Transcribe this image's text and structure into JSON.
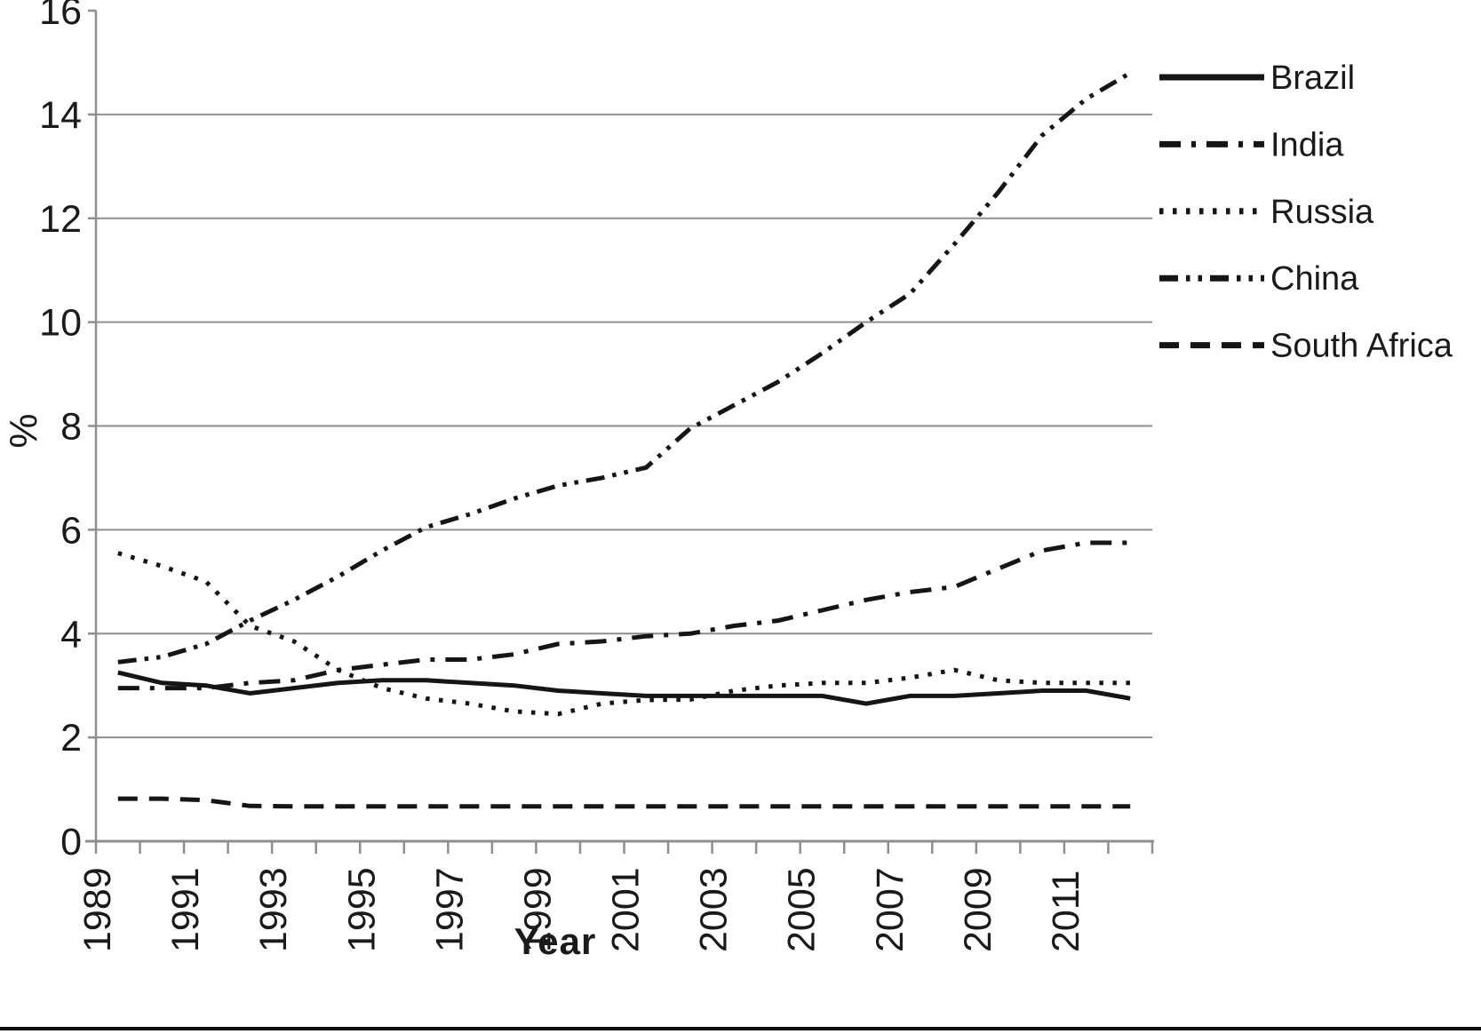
{
  "chart_data": {
    "type": "line",
    "title": "",
    "xlabel": "Year",
    "ylabel": "%",
    "x": [
      1989,
      1990,
      1991,
      1992,
      1993,
      1994,
      1995,
      1996,
      1997,
      1998,
      1999,
      2000,
      2001,
      2002,
      2003,
      2004,
      2005,
      2006,
      2007,
      2008,
      2009,
      2010,
      2011,
      2012
    ],
    "x_tick_labels": [
      "1989",
      "1991",
      "1993",
      "1995",
      "1997",
      "1999",
      "2001",
      "2003",
      "2005",
      "2007",
      "2009",
      "2011"
    ],
    "ylim": [
      0,
      16
    ],
    "y_ticks": [
      0,
      2,
      4,
      6,
      8,
      10,
      12,
      14,
      16
    ],
    "grid": "horizontal",
    "legend_position": "outside-upper-right",
    "line_color": "#151515",
    "axis_color": "#8e8e8e",
    "series": [
      {
        "name": "Brazil",
        "linestyle": "solid",
        "values": [
          3.25,
          3.05,
          3.0,
          2.85,
          2.95,
          3.05,
          3.1,
          3.1,
          3.05,
          3.0,
          2.9,
          2.85,
          2.8,
          2.8,
          2.8,
          2.8,
          2.8,
          2.65,
          2.8,
          2.8,
          2.85,
          2.9,
          2.9,
          2.75
        ]
      },
      {
        "name": "India",
        "linestyle": "dashdot",
        "values": [
          2.95,
          2.95,
          2.95,
          3.05,
          3.1,
          3.3,
          3.4,
          3.5,
          3.5,
          3.6,
          3.8,
          3.85,
          3.95,
          4.0,
          4.15,
          4.25,
          4.45,
          4.65,
          4.8,
          4.9,
          5.25,
          5.6,
          5.75,
          5.75
        ]
      },
      {
        "name": "Russia",
        "linestyle": "dotted",
        "values": [
          5.55,
          5.3,
          5.0,
          4.15,
          3.85,
          3.3,
          2.95,
          2.75,
          2.65,
          2.5,
          2.45,
          2.65,
          2.72,
          2.73,
          2.9,
          3.0,
          3.05,
          3.05,
          3.15,
          3.3,
          3.1,
          3.05,
          3.05,
          3.05
        ]
      },
      {
        "name": "China",
        "linestyle": "dashdotdot",
        "values": [
          3.45,
          3.55,
          3.8,
          4.25,
          4.65,
          5.1,
          5.6,
          6.05,
          6.3,
          6.6,
          6.85,
          7.0,
          7.2,
          7.95,
          8.4,
          8.85,
          9.4,
          10.0,
          10.55,
          11.5,
          12.5,
          13.6,
          14.3,
          14.8
        ]
      },
      {
        "name": "South Africa",
        "linestyle": "dashed",
        "values": [
          0.82,
          0.82,
          0.79,
          0.68,
          0.67,
          0.67,
          0.67,
          0.67,
          0.67,
          0.67,
          0.67,
          0.67,
          0.67,
          0.67,
          0.67,
          0.67,
          0.67,
          0.67,
          0.67,
          0.67,
          0.67,
          0.67,
          0.67,
          0.67
        ]
      }
    ]
  }
}
